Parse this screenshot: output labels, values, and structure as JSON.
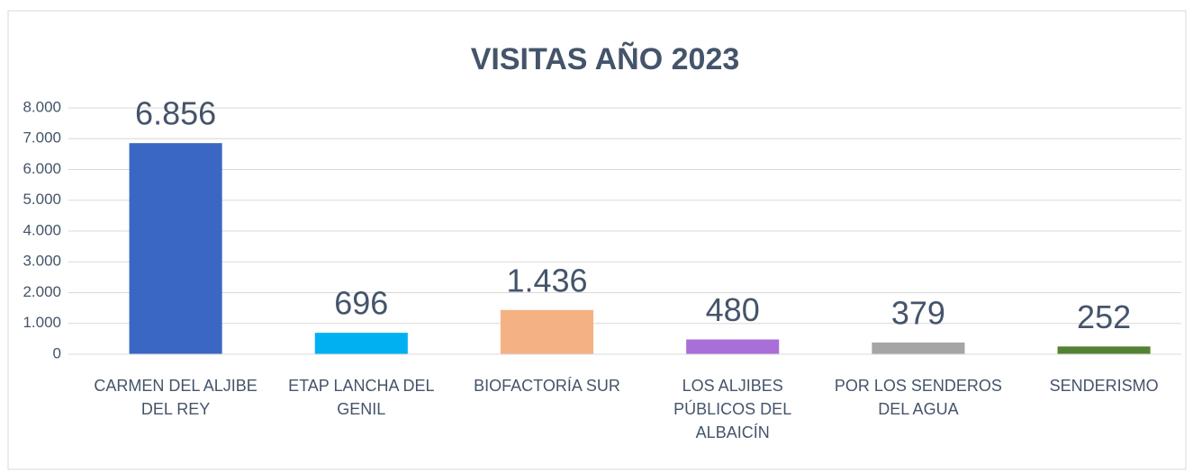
{
  "chart_data": {
    "type": "bar",
    "title": "VISITAS AÑO 2023",
    "categories": [
      "CARMEN DEL ALJIBE DEL REY",
      "ETAP LANCHA DEL GENIL",
      "BIOFACTORÍA SUR",
      "LOS ALJIBES PÚBLICOS DEL ALBAICÍN",
      "POR LOS SENDEROS DEL AGUA",
      "SENDERISMO"
    ],
    "values": [
      6856,
      696,
      1436,
      480,
      379,
      252
    ],
    "value_labels": [
      "6.856",
      "696",
      "1.436",
      "480",
      "379",
      "252"
    ],
    "colors": [
      "#3b67c4",
      "#00b0f0",
      "#f4b183",
      "#a86fd8",
      "#a5a5a5",
      "#548235"
    ],
    "ylim": [
      0,
      8000
    ],
    "yticks": [
      0,
      {
        "value": 1000,
        "label": "1.000"
      },
      {
        "value": 2000,
        "label": "2.000"
      },
      {
        "value": 3000,
        "label": "3.000"
      },
      {
        "value": 4000,
        "label": "4.000"
      },
      {
        "value": 5000,
        "label": "5.000"
      },
      {
        "value": 6000,
        "label": "6.000"
      },
      {
        "value": 7000,
        "label": "7.000"
      },
      {
        "value": 8000,
        "label": "8.000"
      }
    ],
    "grid": true
  }
}
